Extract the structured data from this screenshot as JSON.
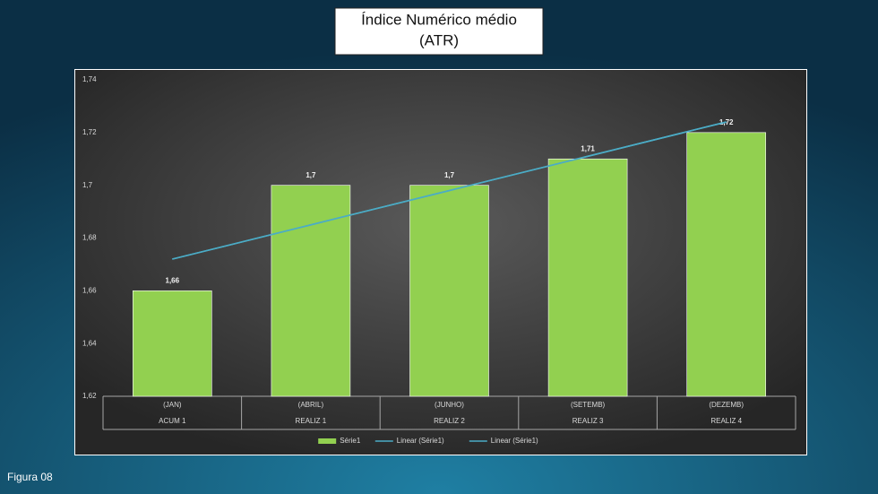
{
  "chart_data": {
    "type": "bar",
    "title": "Índice Numérico  médio",
    "subtitle": "(ATR)",
    "figure_label": "Figura 08",
    "categories": [
      "(JAN)",
      "(ABRIL)",
      "(JUNHO)",
      "(SETEMB)",
      "(DEZEMB)"
    ],
    "category_groups": [
      "ACUM 1",
      "REALIZ 1",
      "REALIZ 2",
      "REALIZ 3",
      "REALIZ 4"
    ],
    "series": [
      {
        "name": "Série1",
        "type": "bar",
        "color": "#92d050",
        "values": [
          1.66,
          1.7,
          1.7,
          1.71,
          1.72
        ],
        "value_labels": [
          "1,66",
          "1,7",
          "1,7",
          "1,71",
          "1,72"
        ]
      },
      {
        "name": "Linear (Série1)",
        "type": "line",
        "color": "#4bacc6",
        "values": [
          1.672,
          1.685,
          1.698,
          1.711,
          1.724
        ]
      },
      {
        "name": "Linear (Série1)",
        "type": "line",
        "color": "#4bacc6",
        "values": [
          1.672,
          1.685,
          1.698,
          1.711,
          1.724
        ]
      }
    ],
    "ylim": [
      1.62,
      1.74
    ],
    "yticks": [
      {
        "value": 1.62,
        "label": "1,62"
      },
      {
        "value": 1.64,
        "label": "1,64"
      },
      {
        "value": 1.66,
        "label": "1,66"
      },
      {
        "value": 1.68,
        "label": "1,68"
      },
      {
        "value": 1.7,
        "label": "1,7"
      },
      {
        "value": 1.72,
        "label": "1,72"
      },
      {
        "value": 1.74,
        "label": "1,74"
      }
    ],
    "grid": false,
    "legend": "bottom"
  }
}
